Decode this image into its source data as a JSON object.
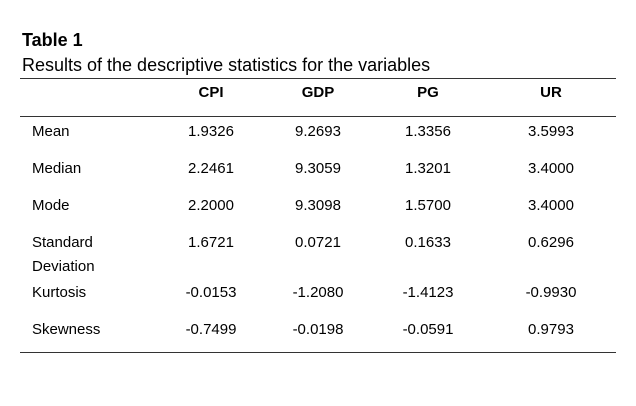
{
  "table": {
    "title": "Table 1",
    "caption": "Results of the descriptive statistics for the variables",
    "columns": [
      "CPI",
      "GDP",
      "PG",
      "UR"
    ],
    "rows": [
      [
        "Mean",
        "1.9326",
        "9.2693",
        "1.3356",
        "3.5993"
      ],
      [
        "Median",
        "2.2461",
        "9.3059",
        "1.3201",
        "3.4000"
      ],
      [
        "Mode",
        "2.2000",
        "9.3098",
        "1.5700",
        "3.4000"
      ],
      [
        "Standard Deviation",
        "1.6721",
        "0.0721",
        "0.1633",
        "0.6296"
      ],
      [
        "Kurtosis",
        "-0.0153",
        "-1.2080",
        "-1.4123",
        "-0.9930"
      ],
      [
        "Skewness",
        "-0.7499",
        "-0.0198",
        "-0.0591",
        "0.9793"
      ]
    ]
  }
}
